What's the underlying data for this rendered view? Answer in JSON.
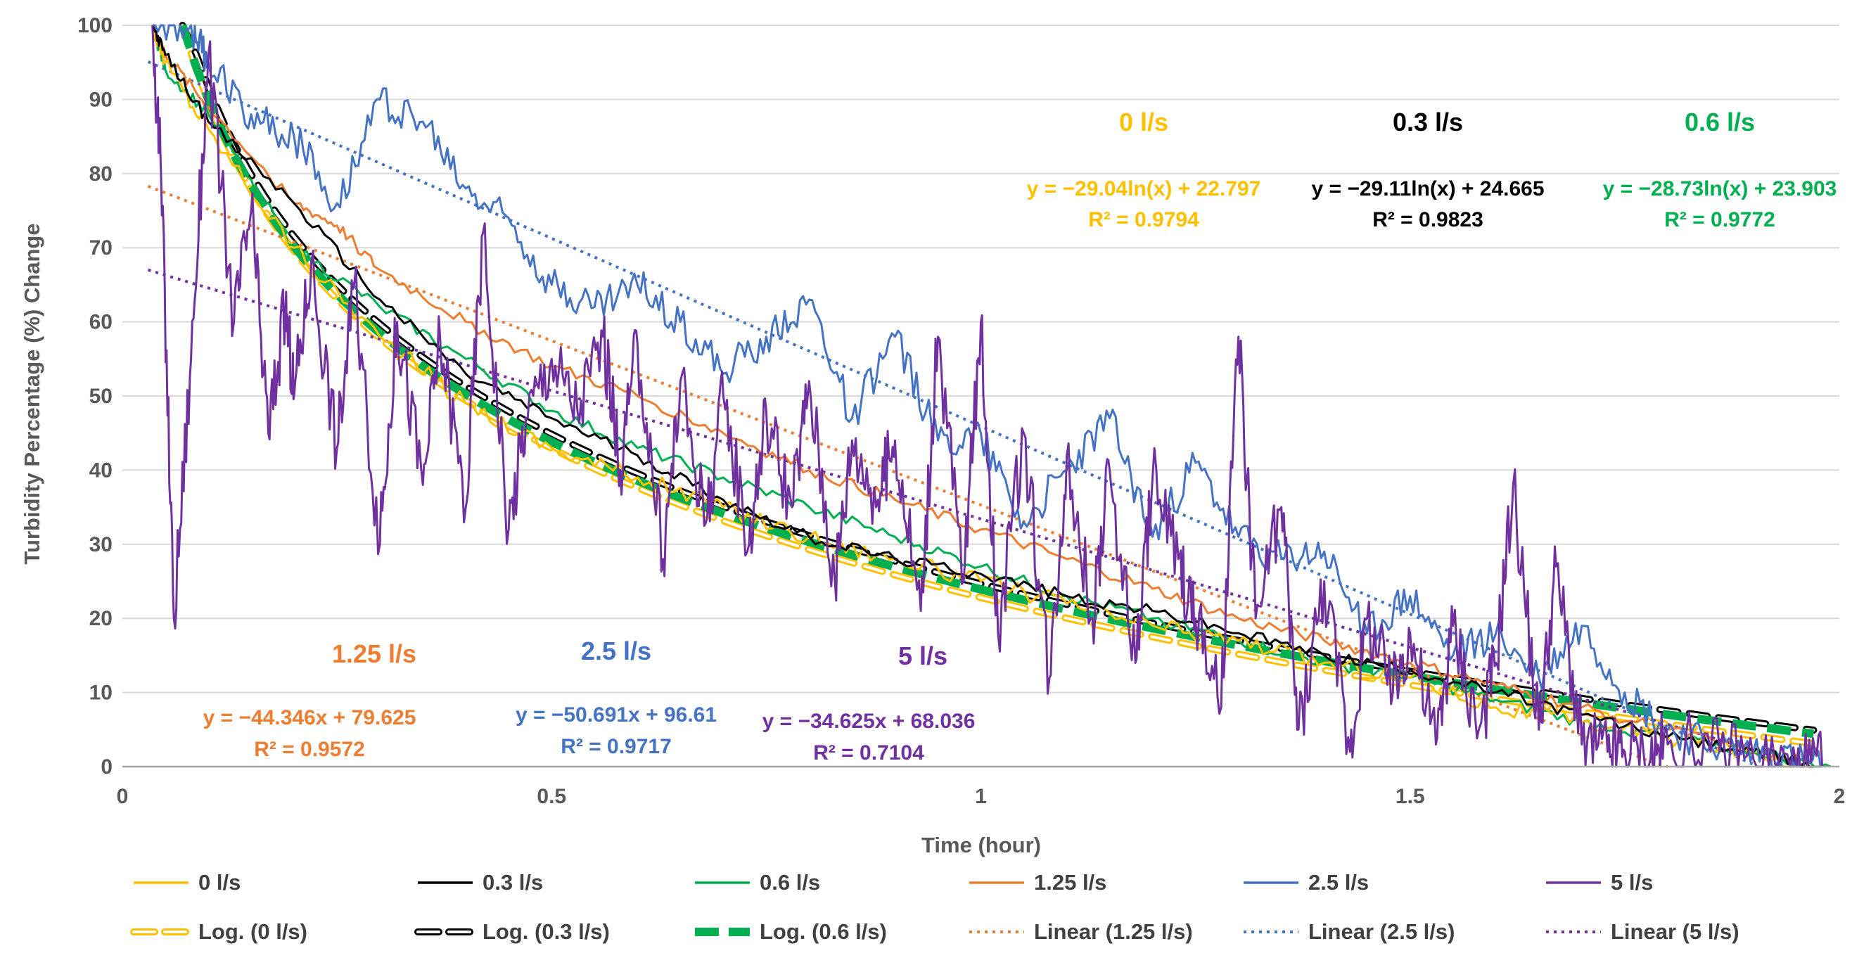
{
  "chart_data": {
    "type": "line",
    "title": "",
    "xlabel": "Time (hour)",
    "ylabel": "Turbidity Percentage (%) Change",
    "xlim": [
      0,
      2
    ],
    "ylim": [
      0,
      100
    ],
    "x_ticks": [
      "0",
      "0.5",
      "1",
      "1.5",
      "2"
    ],
    "y_ticks": [
      "0",
      "10",
      "20",
      "30",
      "40",
      "50",
      "60",
      "70",
      "80",
      "90",
      "100"
    ],
    "colors": {
      "0": "#FFC000",
      "0.3": "#000000",
      "0.6": "#00B050",
      "1.25": "#ED7D31",
      "2.5": "#4472C4",
      "5": "#7030A0"
    },
    "series": [
      {
        "name": "0 l/s",
        "key": "0",
        "style": "solid",
        "noise": 1.2,
        "x": [
          0.035,
          0.05,
          0.1,
          0.2,
          0.3,
          0.4,
          0.5,
          0.6,
          0.7,
          0.8,
          0.9,
          1.0,
          1.1,
          1.2,
          1.3,
          1.4,
          1.5,
          1.6,
          1.7,
          1.8,
          1.9,
          1.97
        ],
        "values": [
          100,
          95,
          86,
          70,
          58,
          49,
          43,
          39,
          35,
          31,
          28,
          25,
          22,
          19,
          17,
          14,
          12,
          8,
          6,
          4,
          2,
          0
        ]
      },
      {
        "name": "0.3 l/s",
        "key": "0.3",
        "style": "solid",
        "noise": 0.8,
        "x": [
          0.035,
          0.05,
          0.1,
          0.2,
          0.3,
          0.4,
          0.5,
          0.6,
          0.7,
          0.8,
          0.9,
          1.0,
          1.1,
          1.2,
          1.3,
          1.4,
          1.5,
          1.6,
          1.7,
          1.8,
          1.9,
          1.97
        ],
        "values": [
          100,
          96,
          87,
          76,
          63,
          53,
          47,
          42,
          36,
          31,
          28,
          26,
          23,
          21,
          18,
          15,
          13,
          10,
          7,
          4,
          2,
          0
        ]
      },
      {
        "name": "0.6 l/s",
        "key": "0.6",
        "style": "solid",
        "noise": 0.8,
        "x": [
          0.035,
          0.05,
          0.1,
          0.2,
          0.3,
          0.4,
          0.5,
          0.6,
          0.7,
          0.8,
          0.9,
          1.0,
          1.1,
          1.2,
          1.3,
          1.4,
          1.5,
          1.6,
          1.7,
          1.8,
          1.9,
          1.99
        ],
        "values": [
          100,
          94,
          88,
          70,
          62,
          55,
          48,
          43,
          39,
          35,
          31,
          27,
          23,
          20,
          17,
          14,
          12,
          9,
          6,
          4,
          2,
          0
        ]
      },
      {
        "name": "1.25 l/s",
        "key": "1.25",
        "style": "solid",
        "noise": 0.8,
        "x": [
          0.035,
          0.05,
          0.1,
          0.2,
          0.25,
          0.3,
          0.4,
          0.5,
          0.6,
          0.7,
          0.8,
          0.9,
          1.0,
          1.1,
          1.2,
          1.3,
          1.4,
          1.5,
          1.6,
          1.7,
          1.8,
          1.9,
          1.97
        ],
        "values": [
          100,
          96,
          89,
          76,
          73,
          67,
          60,
          54,
          50,
          45,
          40,
          36,
          32,
          28,
          24,
          20,
          17,
          14,
          11,
          8,
          5,
          2,
          0
        ]
      },
      {
        "name": "2.5 l/s",
        "key": "2.5",
        "style": "solid",
        "noise": 2.5,
        "x": [
          0.035,
          0.08,
          0.1,
          0.15,
          0.2,
          0.25,
          0.3,
          0.35,
          0.4,
          0.45,
          0.5,
          0.55,
          0.6,
          0.65,
          0.7,
          0.75,
          0.8,
          0.85,
          0.9,
          0.95,
          1.0,
          1.05,
          1.1,
          1.15,
          1.2,
          1.25,
          1.3,
          1.35,
          1.4,
          1.45,
          1.5,
          1.55,
          1.6,
          1.65,
          1.7,
          1.75,
          1.8,
          1.85,
          1.9,
          1.95,
          1.98
        ],
        "values": [
          100,
          100,
          95,
          88,
          85,
          76,
          90,
          87,
          78,
          74,
          65,
          62,
          65,
          60,
          53,
          58,
          63,
          47,
          58,
          44,
          45,
          33,
          40,
          47,
          31,
          41,
          31,
          28,
          29,
          18,
          23,
          15,
          18,
          12,
          19,
          10,
          5,
          3,
          2,
          1,
          0
        ]
      },
      {
        "name": "5 l/s",
        "key": "5",
        "style": "solid",
        "noise": 5,
        "x": [
          0.035,
          0.045,
          0.06,
          0.08,
          0.1,
          0.13,
          0.15,
          0.17,
          0.19,
          0.2,
          0.22,
          0.25,
          0.27,
          0.3,
          0.32,
          0.35,
          0.37,
          0.4,
          0.42,
          0.45,
          0.47,
          0.5,
          0.53,
          0.56,
          0.58,
          0.6,
          0.63,
          0.65,
          0.68,
          0.7,
          0.73,
          0.75,
          0.78,
          0.8,
          0.83,
          0.85,
          0.88,
          0.9,
          0.93,
          0.95,
          0.98,
          1.0,
          1.02,
          1.05,
          1.08,
          1.1,
          1.13,
          1.15,
          1.18,
          1.2,
          1.23,
          1.25,
          1.28,
          1.3,
          1.32,
          1.35,
          1.37,
          1.4,
          1.43,
          1.45,
          1.48,
          1.5,
          1.53,
          1.55,
          1.58,
          1.6,
          1.62,
          1.65,
          1.67,
          1.7,
          1.73,
          1.75,
          1.78,
          1.8,
          1.85,
          1.9,
          1.95,
          1.98
        ],
        "values": [
          100,
          80,
          20,
          55,
          96,
          60,
          75,
          45,
          62,
          50,
          68,
          43,
          65,
          30,
          60,
          38,
          58,
          35,
          72,
          32,
          47,
          55,
          48,
          58,
          40,
          57,
          28,
          52,
          33,
          50,
          30,
          48,
          35,
          52,
          25,
          44,
          36,
          44,
          21,
          58,
          25,
          60,
          18,
          45,
          12,
          42,
          20,
          40,
          14,
          39,
          28,
          20,
          8,
          58,
          20,
          35,
          5,
          25,
          2,
          20,
          10,
          18,
          3,
          19,
          5,
          14,
          38,
          5,
          27,
          3,
          2,
          2,
          1,
          3,
          2,
          1,
          0,
          0
        ]
      },
      {
        "name": "Log. (0 l/s)",
        "key": "0",
        "style": "log",
        "fit": {
          "a": -29.04,
          "b": 22.797
        },
        "x_range": [
          0.07,
          1.97
        ]
      },
      {
        "name": "Log. (0.3 l/s)",
        "key": "0.3",
        "style": "log",
        "fit": {
          "a": -29.11,
          "b": 24.665
        },
        "x_range": [
          0.07,
          1.97
        ]
      },
      {
        "name": "Log. (0.6 l/s)",
        "key": "0.6",
        "style": "logthick",
        "fit": {
          "a": -28.73,
          "b": 23.903
        },
        "x_range": [
          0.07,
          1.97
        ]
      },
      {
        "name": "Linear (1.25 l/s)",
        "key": "1.25",
        "style": "dotted",
        "fit": {
          "m": -44.346,
          "c": 79.625
        },
        "x_range": [
          0.03,
          1.8
        ]
      },
      {
        "name": "Linear (2.5 l/s)",
        "key": "2.5",
        "style": "dotted",
        "fit": {
          "m": -50.691,
          "c": 96.61
        },
        "x_range": [
          0.03,
          1.9
        ]
      },
      {
        "name": "Linear (5 l/s)",
        "key": "5",
        "style": "dotted",
        "fit": {
          "m": -34.625,
          "c": 68.036
        },
        "x_range": [
          0.03,
          1.96
        ]
      }
    ],
    "annotations": [
      {
        "id": "ann-0",
        "key": "0",
        "title": "0 l/s",
        "equation": "y = −29.04ln(x) + 22.797",
        "r2": "R² = 0.9794"
      },
      {
        "id": "ann-0-3",
        "key": "0.3",
        "title": "0.3 l/s",
        "equation": "y = −29.11ln(x) + 24.665",
        "r2": "R² = 0.9823"
      },
      {
        "id": "ann-0-6",
        "key": "0.6",
        "title": "0.6 l/s",
        "equation": "y = −28.73ln(x) + 23.903",
        "r2": "R² = 0.9772"
      },
      {
        "id": "ann-1-25",
        "key": "1.25",
        "title": "1.25 l/s",
        "equation": "y = −44.346x + 79.625",
        "r2": "R² = 0.9572"
      },
      {
        "id": "ann-2-5",
        "key": "2.5",
        "title": "2.5 l/s",
        "equation": "y = −50.691x + 96.61",
        "r2": "R² = 0.9717"
      },
      {
        "id": "ann-5",
        "key": "5",
        "title": "5 l/s",
        "equation": "y = −34.625x + 68.036",
        "r2": "R² = 0.7104"
      }
    ],
    "legend_position": "bottom"
  }
}
